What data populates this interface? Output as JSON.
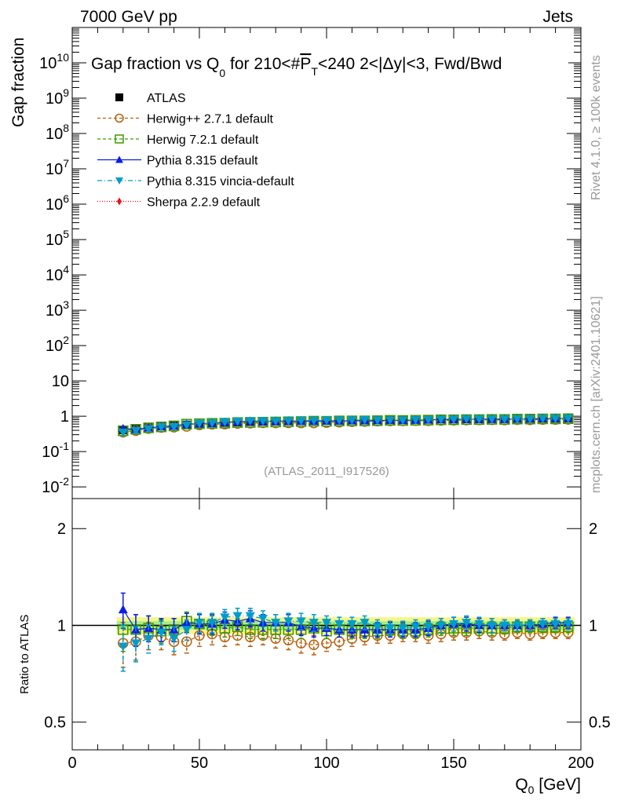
{
  "header": {
    "left": "7000 GeV pp",
    "right": "Jets"
  },
  "side": {
    "top": "Rivet 4.1.0, ≥ 100k events",
    "bottom": "mcplots.cern.ch [arXiv:2401.10621]"
  },
  "chart_data": {
    "type": "scatter",
    "title": {
      "a": "Gap fraction vs Q",
      "a_sub": "0",
      "b": " for 210<#",
      "c": "P",
      "c_sub": "T",
      "d": "<240  2<|Δy|<3, Fwd/Bwd"
    },
    "watermark": "(ATLAS_2011_I917526)",
    "xlabel": "Q",
    "xlabel_sub": "0",
    "xlabel_unit": " [GeV]",
    "ylabel": "Gap fraction",
    "ratio_ylabel": "Ratio to ATLAS",
    "xlim": [
      0,
      200
    ],
    "ylim_log10": [
      -2.33,
      11
    ],
    "ratio_ylim": [
      0.41,
      2.48
    ],
    "xticks": [
      "0",
      "50",
      "100",
      "150",
      "200"
    ],
    "yticks": [
      {
        "base": "10",
        "exp": "-2",
        "v": -2
      },
      {
        "base": "10",
        "exp": "-1",
        "v": -1
      },
      {
        "base": "1",
        "exp": "",
        "v": 0
      },
      {
        "base": "10",
        "exp": "",
        "v": 1
      },
      {
        "base": "10",
        "exp": "2",
        "v": 2
      },
      {
        "base": "10",
        "exp": "3",
        "v": 3
      },
      {
        "base": "10",
        "exp": "4",
        "v": 4
      },
      {
        "base": "10",
        "exp": "5",
        "v": 5
      },
      {
        "base": "10",
        "exp": "6",
        "v": 6
      },
      {
        "base": "10",
        "exp": "7",
        "v": 7
      },
      {
        "base": "10",
        "exp": "8",
        "v": 8
      },
      {
        "base": "10",
        "exp": "9",
        "v": 9
      },
      {
        "base": "10",
        "exp": "10",
        "v": 10
      }
    ],
    "ratio_yticks": [
      "0.5",
      "1",
      "2"
    ],
    "x": [
      20,
      25,
      30,
      35,
      40,
      45,
      50,
      55,
      60,
      65,
      70,
      75,
      80,
      85,
      90,
      95,
      100,
      105,
      110,
      115,
      120,
      125,
      130,
      135,
      140,
      145,
      150,
      155,
      160,
      165,
      170,
      175,
      180,
      185,
      190,
      195
    ],
    "atlas": [
      0.4,
      0.44,
      0.48,
      0.52,
      0.55,
      0.58,
      0.61,
      0.63,
      0.65,
      0.67,
      0.69,
      0.7,
      0.71,
      0.72,
      0.73,
      0.74,
      0.75,
      0.76,
      0.77,
      0.77,
      0.78,
      0.79,
      0.79,
      0.8,
      0.8,
      0.81,
      0.81,
      0.82,
      0.82,
      0.83,
      0.83,
      0.84,
      0.84,
      0.85,
      0.85,
      0.86
    ],
    "atlas_rel_unc": 0.03,
    "mc_rel_err": [
      0.14,
      0.11,
      0.09,
      0.08,
      0.08,
      0.07,
      0.07,
      0.07,
      0.06,
      0.06,
      0.06,
      0.06,
      0.06,
      0.06,
      0.06,
      0.06,
      0.05,
      0.05,
      0.05,
      0.05,
      0.05,
      0.05,
      0.05,
      0.05,
      0.05,
      0.05,
      0.05,
      0.05,
      0.05,
      0.05,
      0.04,
      0.04,
      0.04,
      0.04,
      0.04,
      0.04
    ],
    "legend_position": "top-left",
    "series": [
      {
        "name": "ATLAS",
        "color": "#000000",
        "marker": "square-filled",
        "ratio": null
      },
      {
        "name": "Herwig++ 2.7.1 default",
        "color": "#b8600e",
        "marker": "circle-open",
        "dash": "4,3",
        "ratio": [
          0.88,
          0.89,
          0.93,
          0.92,
          0.89,
          0.89,
          0.93,
          0.94,
          0.92,
          0.93,
          0.92,
          0.93,
          0.91,
          0.9,
          0.88,
          0.87,
          0.88,
          0.89,
          0.91,
          0.92,
          0.93,
          0.93,
          0.94,
          0.94,
          0.93,
          0.94,
          0.95,
          0.95,
          0.96,
          0.95,
          0.94,
          0.95,
          0.94,
          0.95,
          0.95,
          0.95
        ]
      },
      {
        "name": "Herwig 7.2.1 default",
        "color": "#3c9a00",
        "marker": "square-open",
        "dash": "4,3",
        "ratio": [
          0.97,
          0.97,
          0.98,
          0.96,
          0.97,
          1.03,
          1.01,
          1.0,
          0.98,
          0.99,
          0.97,
          0.97,
          0.97,
          0.97,
          0.97,
          0.98,
          0.96,
          0.97,
          0.96,
          0.96,
          0.96,
          0.97,
          0.96,
          0.96,
          0.97,
          0.98,
          0.98,
          0.98,
          0.98,
          0.98,
          0.98,
          0.99,
          0.99,
          0.99,
          0.99,
          0.99
        ]
      },
      {
        "name": "Pythia 8.315 default",
        "color": "#0a1ee6",
        "marker": "triangle-up",
        "dash": "",
        "ratio": [
          1.12,
          0.97,
          0.98,
          0.97,
          0.97,
          1.02,
          1.01,
          1.01,
          1.04,
          1.03,
          1.05,
          1.02,
          1.02,
          1.02,
          0.99,
          0.98,
          0.98,
          0.97,
          0.97,
          0.97,
          0.97,
          0.97,
          0.97,
          0.97,
          0.98,
          1.0,
          1.01,
          1.01,
          1.0,
          1.0,
          1.0,
          1.0,
          1.0,
          1.01,
          1.02,
          1.02
        ]
      },
      {
        "name": "Pythia 8.315 vincia-default",
        "color": "#009ccc",
        "marker": "triangle-down",
        "dash": "6,3,1,3",
        "ratio": [
          0.86,
          0.88,
          0.91,
          0.95,
          0.91,
          0.97,
          1.02,
          1.02,
          1.06,
          1.07,
          1.07,
          1.05,
          1.02,
          1.03,
          1.03,
          1.02,
          1.02,
          1.01,
          1.01,
          1.02,
          0.99,
          0.98,
          0.98,
          0.99,
          0.99,
          1.0,
          1.01,
          1.02,
          1.01,
          1.0,
          1.0,
          1.0,
          1.0,
          1.01,
          1.01,
          1.01
        ]
      },
      {
        "name": "Sherpa 2.2.9 default",
        "color": "#ee1111",
        "marker": "diamond",
        "dash": "1,2",
        "ratio": null
      }
    ]
  }
}
